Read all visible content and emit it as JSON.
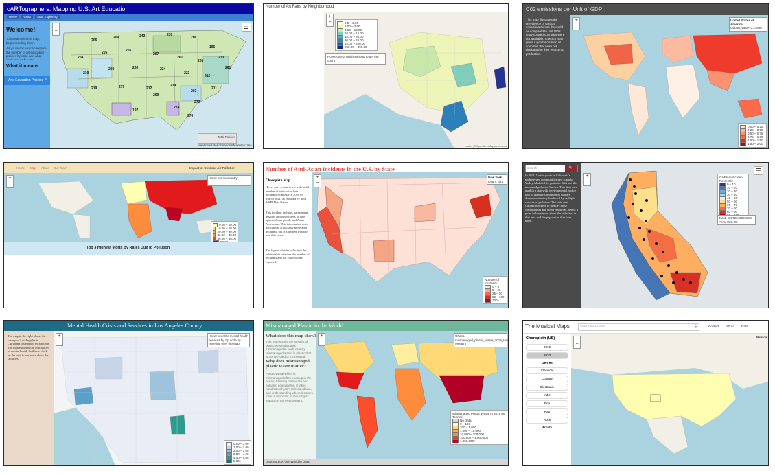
{
  "panels": {
    "p1": {
      "title": "cARTographers: Mapping U.S. Art Education",
      "nav": [
        "Home",
        "About",
        "Start Exploring"
      ],
      "welcome": "Welcome!",
      "intro": "To interact with the map, begin scrolling down.",
      "intro2": "As you scroll you can explore the number of art education policies by state and what each means for arts education in each state.",
      "what": "What it means",
      "sidebar_button": "Arts Education Policies",
      "state_counts": [
        "206",
        "209",
        "242",
        "237",
        "206",
        "196",
        "204",
        "205",
        "205",
        "207",
        "201",
        "208",
        "213",
        "261",
        "210",
        "260",
        "260",
        "224",
        "223",
        "215",
        "219",
        "279",
        "212",
        "219",
        "203",
        "211",
        "197",
        "274",
        "273",
        "270",
        "209"
      ],
      "legend_label": "Total Policies",
      "bottom_bar": "Mentioned Performance Measures: Yes"
    },
    "p2": {
      "title": "Number of Art Fairs by Neighborhood",
      "legend": [
        "0.5 – 2.00",
        "2.00 – 3.60",
        "3.60 – 10.00",
        "10.00 – 15.00",
        "15.00 – 30.00",
        "30.00 – 45.00",
        "45.00 – 200.00",
        "200.00 – 300.00"
      ],
      "hover": "Hover over a neighborhood to get the count",
      "attribution": "Leaflet | © OpenStreetMap contributors"
    },
    "p3": {
      "title": "C02 emissions per Unit of GDP",
      "side_text": "This map illustrates the prevalence of carbon emissions across the world as compared to unit GDP. Gray colored countries were not available. In which map gives a good indication of countries that were not dedicated to their economic production.",
      "tooltip_title": "United States of America",
      "tooltip_value": "carbon_value: 0.27896",
      "legend": [
        "0.00 – 0.25",
        "0.25 – 0.50",
        "0.50 – 0.75",
        "0.75 – 1.00",
        "1.00 – 1.50",
        "1.50 – 2.00"
      ]
    },
    "p4": {
      "nav": [
        "Home",
        "Map",
        "About",
        "Our Team"
      ],
      "header_right": "Impact of Outdoor Air Pollution",
      "hover_box": "Hover over a country",
      "caption": "Top 3 Highest Morts By Rates Due to Pollution",
      "legend": [
        "0.00 – 10.00",
        "10.00 – 20.00",
        "20.00 – 30.00",
        "30.00 – 40.00",
        "40.00 – 50.00",
        "50.00+"
      ]
    },
    "p5": {
      "title": "Number of Anti-Asian Incidents in the U.S. by State",
      "subtitle": "Choropleth Map",
      "para1": "Hover over a state to view the total number of anti-Asian hate incidents from March 2020 to March 2021, as reported by Stop AAPI Hate Report.",
      "para2": "This incident includes harassment, assaults and other forms of hate against Asian people and Asian Americans. This information does not capture all racially-motivated incidents, but is a limited window into this crisis.",
      "para3": "The legend divides color into the relationship between the number of incidents and the color values reported.",
      "tooltip_title": "New York",
      "tooltip_value": "Count: 423",
      "legend_title": "Number of Incidents",
      "legend": [
        "0 – 5",
        "5 – 25",
        "25 – 50",
        "50 – 100",
        "100+"
      ]
    },
    "p6": {
      "search": "Search",
      "side_text": "In 2021, Latino youth in California's underserved communities saw Joaquin Valley inhabited by pesticide drift and the increased pollution burden. This data was used in a statewide environmental justice tool to identify communities that are disproportionately burdened by multiple sources of pollution. The state uses CalEnviroScreen to identify these communities and direct resources. Select a point to learn more about the pollution in that area and the population that lives there.",
      "legend_title": "CalEnviroScreen Percentile",
      "legend": [
        "0 – 10",
        "10 – 20",
        "20 – 30",
        "30 – 40",
        "40 – 50",
        "50 – 60",
        "60 – 70",
        "70 – 80",
        "80 – 90",
        "90 – 100"
      ],
      "tooltip": "Tract: 6037204920 CES Percentile: 99"
    },
    "p7": {
      "title": "Mental Health Crisis and Services in Los Angeles County",
      "side_text": "The map to the right shows the county of Los Angeles in California distributed by zip code. The map explores the availability of mental health facilities. Click on the pins to see more about the facilities.",
      "info_box": "Hover over the mental health services by zip code by hovering over the map",
      "legend": [
        "0.00 – 1.00",
        "1.00 – 2.00",
        "2.00 – 3.00",
        "3.00 – 4.00",
        "4.00 – 5.00",
        "5.00+"
      ]
    },
    "p8": {
      "title": "Mismanaged Plastic in the World",
      "q1": "What does this map show?",
      "a1": "This map shows the amount of plastic waste that was mismanaged in each country. Mismanaged waste is plastic that is not recycled or incinerated.",
      "q2": "Why does mismanaged plastic waste matter?",
      "a2": "Plastic waste which is mismanaged often ends up in the ocean, harming marine life and polluting ecosystems. It takes hundreds of years to break down, and understanding where it comes from is important to reducing its impact on the environment.",
      "info_title": "Ghana",
      "info_value": "mismanaged_plastic_waste_2019_tonnes: 99.6572",
      "legend_title": "Mismanaged Plastic Waste in 2019 (in Tonnes)",
      "legend": [
        "No Data",
        "0 – 100",
        "100 – 1,000",
        "1,000 – 10,000",
        "10,000 – 100,000",
        "100,000 – 1,000,000",
        "1,000,000+"
      ],
      "footer": "Data Source: Our World in Data"
    },
    "p9": {
      "app_title": "The Musical Maps",
      "search_placeholder": "search for an artist",
      "nav": [
        "Contact",
        "About",
        "Data"
      ],
      "side_title": "Choropleth (US)",
      "years": [
        "2019",
        "2020"
      ],
      "genres_title": "Genres",
      "genres": [
        "Classical",
        "Country",
        "Electronic",
        "Indie",
        "Pop",
        "Rap",
        "Rock"
      ],
      "artists_title": "Artists",
      "right_label": "Musica"
    }
  },
  "colors": {
    "p1_header": "#0b08a2",
    "p1_sidebar": "#5fa8e6",
    "p5_title": "#e2473f",
    "p6_side": "#4a4a4a",
    "p7_header": "#1d6b86",
    "p8_header": "#6fb79a",
    "p9_selected": "#c9c9c9"
  }
}
